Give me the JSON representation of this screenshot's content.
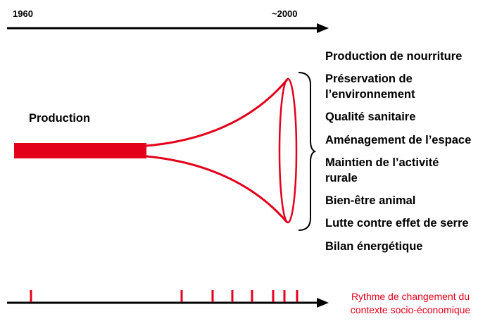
{
  "timeline": {
    "start_label": "1960",
    "end_label": "~2000"
  },
  "funnel": {
    "input_label": "Production",
    "color": "#e3001b"
  },
  "functions": [
    "Production de nourriture",
    "Préservation de",
    "l’environnement",
    "Qualité sanitaire",
    "Aménagement de l’espace",
    "Maintien de l’activité",
    "rurale",
    "Bien-être animal",
    "Lutte contre effet de serre",
    "Bilan énergétique"
  ],
  "rhythm": {
    "line1": "Rythme de changement du",
    "line2": "contexte socio-économique",
    "tick_count": 8,
    "color": "#e3001b"
  }
}
